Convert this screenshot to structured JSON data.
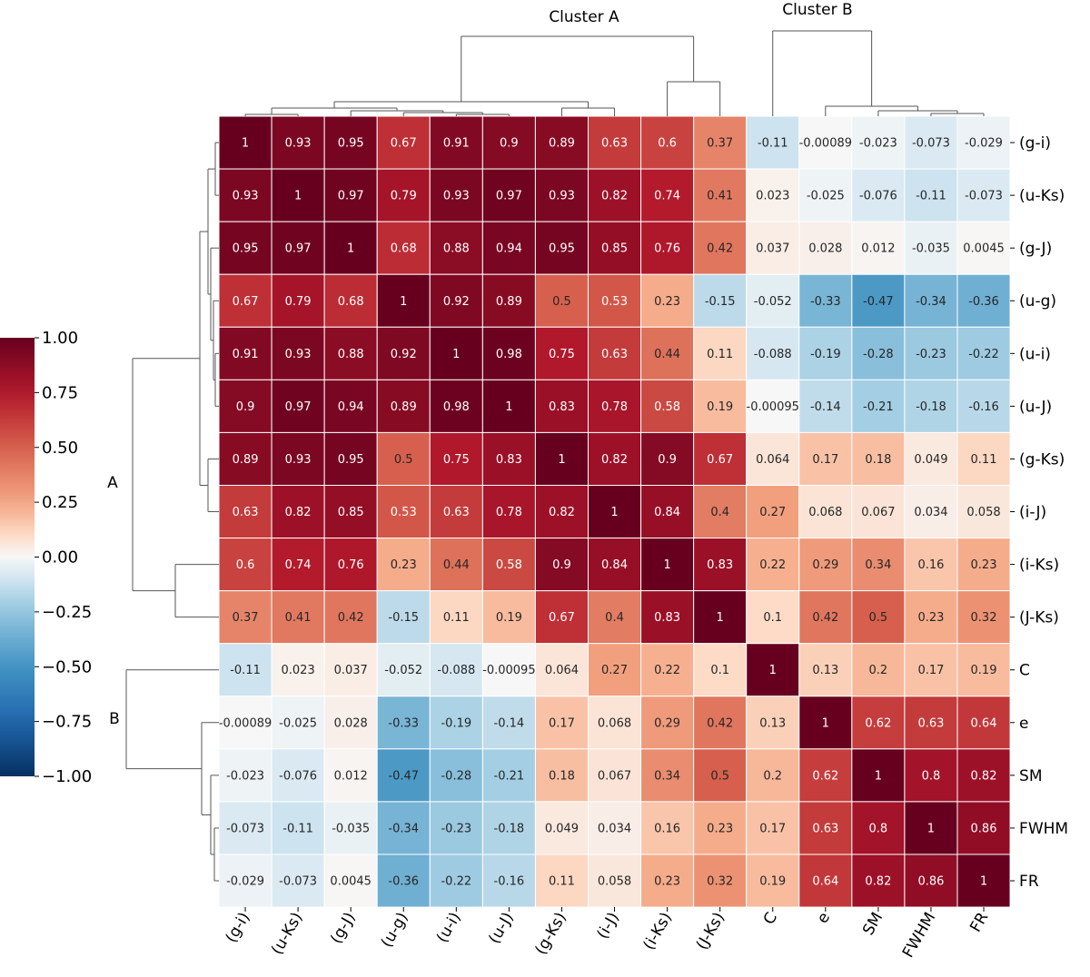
{
  "chart_data": {
    "type": "heatmap",
    "title": "",
    "labels": [
      "(g-i)",
      "(u-Ks)",
      "(g-J)",
      "(u-g)",
      "(u-i)",
      "(u-J)",
      "(g-Ks)",
      "(i-J)",
      "(i-Ks)",
      "(J-Ks)",
      "C",
      "e",
      "SM",
      "FWHM",
      "FR"
    ],
    "values": [
      [
        "1",
        "0.93",
        "0.95",
        "0.67",
        "0.91",
        "0.9",
        "0.89",
        "0.63",
        "0.6",
        "0.37",
        "-0.11",
        "-0.00089",
        "-0.023",
        "-0.073",
        "-0.029"
      ],
      [
        "0.93",
        "1",
        "0.97",
        "0.79",
        "0.93",
        "0.97",
        "0.93",
        "0.82",
        "0.74",
        "0.41",
        "0.023",
        "-0.025",
        "-0.076",
        "-0.11",
        "-0.073"
      ],
      [
        "0.95",
        "0.97",
        "1",
        "0.68",
        "0.88",
        "0.94",
        "0.95",
        "0.85",
        "0.76",
        "0.42",
        "0.037",
        "0.028",
        "0.012",
        "-0.035",
        "0.0045"
      ],
      [
        "0.67",
        "0.79",
        "0.68",
        "1",
        "0.92",
        "0.89",
        "0.5",
        "0.53",
        "0.23",
        "-0.15",
        "-0.052",
        "-0.33",
        "-0.47",
        "-0.34",
        "-0.36"
      ],
      [
        "0.91",
        "0.93",
        "0.88",
        "0.92",
        "1",
        "0.98",
        "0.75",
        "0.63",
        "0.44",
        "0.11",
        "-0.088",
        "-0.19",
        "-0.28",
        "-0.23",
        "-0.22"
      ],
      [
        "0.9",
        "0.97",
        "0.94",
        "0.89",
        "0.98",
        "1",
        "0.83",
        "0.78",
        "0.58",
        "0.19",
        "-0.00095",
        "-0.14",
        "-0.21",
        "-0.18",
        "-0.16"
      ],
      [
        "0.89",
        "0.93",
        "0.95",
        "0.5",
        "0.75",
        "0.83",
        "1",
        "0.82",
        "0.9",
        "0.67",
        "0.064",
        "0.17",
        "0.18",
        "0.049",
        "0.11"
      ],
      [
        "0.63",
        "0.82",
        "0.85",
        "0.53",
        "0.63",
        "0.78",
        "0.82",
        "1",
        "0.84",
        "0.4",
        "0.27",
        "0.068",
        "0.067",
        "0.034",
        "0.058"
      ],
      [
        "0.6",
        "0.74",
        "0.76",
        "0.23",
        "0.44",
        "0.58",
        "0.9",
        "0.84",
        "1",
        "0.83",
        "0.22",
        "0.29",
        "0.34",
        "0.16",
        "0.23"
      ],
      [
        "0.37",
        "0.41",
        "0.42",
        "-0.15",
        "0.11",
        "0.19",
        "0.67",
        "0.4",
        "0.83",
        "1",
        "0.1",
        "0.42",
        "0.5",
        "0.23",
        "0.32"
      ],
      [
        "-0.11",
        "0.023",
        "0.037",
        "-0.052",
        "-0.088",
        "-0.00095",
        "0.064",
        "0.27",
        "0.22",
        "0.1",
        "1",
        "0.13",
        "0.2",
        "0.17",
        "0.19"
      ],
      [
        "-0.00089",
        "-0.025",
        "0.028",
        "-0.33",
        "-0.19",
        "-0.14",
        "0.17",
        "0.068",
        "0.29",
        "0.42",
        "0.13",
        "1",
        "0.62",
        "0.63",
        "0.64"
      ],
      [
        "-0.023",
        "-0.076",
        "0.012",
        "-0.47",
        "-0.28",
        "-0.21",
        "0.18",
        "0.067",
        "0.34",
        "0.5",
        "0.2",
        "0.62",
        "1",
        "0.8",
        "0.82"
      ],
      [
        "-0.073",
        "-0.11",
        "-0.035",
        "-0.34",
        "-0.23",
        "-0.18",
        "0.049",
        "0.034",
        "0.16",
        "0.23",
        "0.17",
        "0.63",
        "0.8",
        "1",
        "0.86"
      ],
      [
        "-0.029",
        "-0.073",
        "0.0045",
        "-0.36",
        "-0.22",
        "-0.16",
        "0.11",
        "0.058",
        "0.23",
        "0.32",
        "0.19",
        "0.64",
        "0.82",
        "0.86",
        "1"
      ]
    ],
    "colorbar": {
      "vmin": -1.0,
      "vmax": 1.0,
      "ticks": [
        "1.00",
        "0.75",
        "0.50",
        "0.25",
        "0.00",
        "−0.25",
        "−0.50",
        "−0.75",
        "−1.00"
      ],
      "colormap": "RdBu_r"
    },
    "clusters": {
      "top": [
        "Cluster A",
        "Cluster B"
      ],
      "left": [
        "A",
        "B"
      ]
    }
  },
  "colors": {
    "neg_end": "#053061",
    "pos_end": "#67001f",
    "dendrogram": "#555555"
  }
}
